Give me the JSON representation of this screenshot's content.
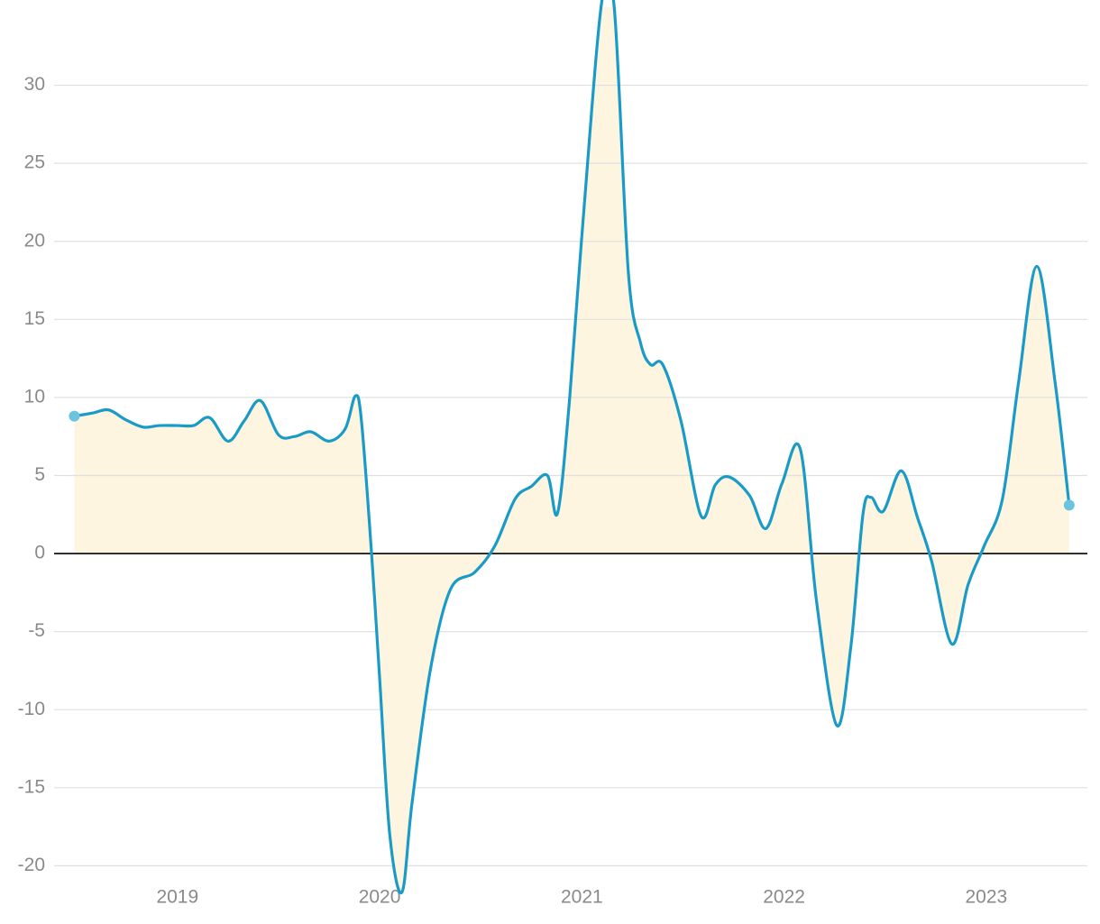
{
  "chart_data": {
    "type": "line",
    "color": "#1a9bc7",
    "area_color": "#fdf5df",
    "x": [
      2018.49,
      2018.58,
      2018.66,
      2018.74,
      2018.83,
      2018.91,
      2019.0,
      2019.08,
      2019.16,
      2019.25,
      2019.33,
      2019.41,
      2019.5,
      2019.58,
      2019.66,
      2019.75,
      2019.83,
      2019.88,
      2019.91,
      2019.96,
      2020.0,
      2020.05,
      2020.11,
      2020.16,
      2020.25,
      2020.35,
      2020.47,
      2020.57,
      2020.67,
      2020.75,
      2020.83,
      2020.88,
      2020.94,
      2021.01,
      2021.1,
      2021.16,
      2021.23,
      2021.29,
      2021.34,
      2021.4,
      2021.49,
      2021.59,
      2021.66,
      2021.73,
      2021.83,
      2021.91,
      2021.99,
      2022.08,
      2022.16,
      2022.26,
      2022.33,
      2022.39,
      2022.43,
      2022.49,
      2022.58,
      2022.66,
      2022.73,
      2022.83,
      2022.91,
      2022.99,
      2023.08,
      2023.16,
      2023.25,
      2023.34,
      2023.41
    ],
    "values": [
      8.8,
      9.0,
      9.2,
      8.6,
      8.1,
      8.2,
      8.2,
      8.2,
      8.7,
      7.2,
      8.5,
      9.8,
      7.6,
      7.5,
      7.8,
      7.2,
      8.0,
      10.1,
      8.5,
      0,
      -8,
      -18,
      -21.7,
      -16,
      -7.5,
      -2.3,
      -1.2,
      0.5,
      3.5,
      4.3,
      5.0,
      2.6,
      10,
      22,
      35.5,
      35,
      18,
      13.5,
      12.1,
      12.1,
      8.5,
      2.4,
      4.4,
      4.9,
      3.7,
      1.6,
      4.5,
      6.7,
      -3,
      -11,
      -6,
      2.5,
      3.6,
      2.7,
      5.3,
      2.3,
      -0.5,
      -5.8,
      -2,
      0.5,
      3.5,
      11,
      18.4,
      11,
      3.1
    ],
    "xlim": [
      2018.39,
      2023.5
    ],
    "ylim": [
      -22,
      35
    ],
    "xticks": [
      2019,
      2020,
      2021,
      2022,
      2023
    ],
    "yticks": [
      -20,
      -15,
      -10,
      -5,
      0,
      5,
      10,
      15,
      20,
      25,
      30
    ],
    "grid": true
  }
}
